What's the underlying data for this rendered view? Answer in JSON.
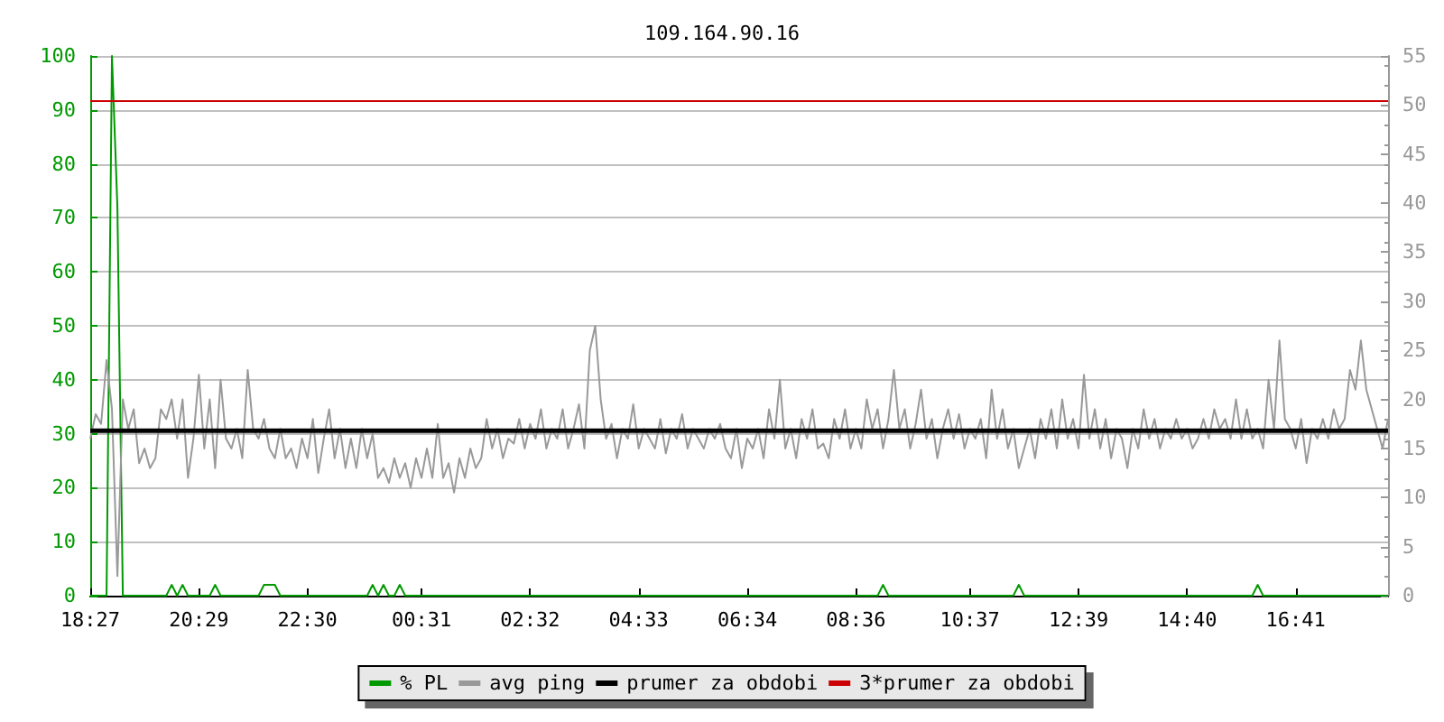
{
  "chart_data": {
    "type": "line",
    "title": "109.164.90.16",
    "legend": "bottom",
    "grid": "y",
    "marker": "none",
    "line_style": "solid",
    "categories": [
      "18:27",
      null,
      null,
      null,
      null,
      null,
      null,
      null,
      null,
      null,
      null,
      null,
      null,
      null,
      null,
      null,
      null,
      null,
      null,
      null,
      "20:29",
      null,
      null,
      null,
      null,
      null,
      null,
      null,
      null,
      null,
      null,
      null,
      null,
      null,
      null,
      null,
      null,
      null,
      null,
      null,
      "22:30",
      null,
      null,
      null,
      null,
      null,
      null,
      null,
      null,
      null,
      null,
      null,
      null,
      null,
      null,
      null,
      null,
      null,
      null,
      null,
      null,
      "00:31",
      null,
      null,
      null,
      null,
      null,
      null,
      null,
      null,
      null,
      null,
      null,
      null,
      null,
      null,
      null,
      null,
      null,
      null,
      null,
      "02:32",
      null,
      null,
      null,
      null,
      null,
      null,
      null,
      null,
      null,
      null,
      null,
      null,
      null,
      null,
      null,
      null,
      null,
      null,
      null,
      "04:33",
      null,
      null,
      null,
      null,
      null,
      null,
      null,
      null,
      null,
      null,
      null,
      null,
      null,
      null,
      null,
      null,
      null,
      null,
      null,
      "06:34",
      null,
      null,
      null,
      null,
      null,
      null,
      null,
      null,
      null,
      null,
      null,
      null,
      null,
      null,
      null,
      null,
      null,
      null,
      null,
      "08:36",
      null,
      null,
      null,
      null,
      null,
      null,
      null,
      null,
      null,
      null,
      null,
      null,
      null,
      null,
      null,
      null,
      null,
      null,
      null,
      null,
      "10:37",
      null,
      null,
      null,
      null,
      null,
      null,
      null,
      null,
      null,
      null,
      null,
      null,
      null,
      null,
      null,
      null,
      null,
      null,
      null,
      "12:39",
      null,
      null,
      null,
      null,
      null,
      null,
      null,
      null,
      null,
      null,
      null,
      null,
      null,
      null,
      null,
      null,
      null,
      null,
      null,
      "14:40",
      null,
      null,
      null,
      null,
      null,
      null,
      null,
      null,
      null,
      null,
      null,
      null,
      null,
      null,
      null,
      null,
      null,
      null,
      null,
      "16:41",
      null,
      null,
      null,
      null,
      null,
      null,
      null,
      null,
      null,
      null,
      null,
      null,
      null,
      null,
      null,
      null,
      null
    ],
    "ylim": [
      0,
      100
    ],
    "yticks": [
      0,
      10,
      20,
      30,
      40,
      50,
      60,
      70,
      80,
      90,
      100
    ],
    "y2lim": [
      0,
      55
    ],
    "y2ticks": [
      0,
      5,
      10,
      15,
      20,
      25,
      30,
      35,
      40,
      45,
      50,
      55
    ],
    "series": [
      {
        "name": "% PL",
        "color": "#009900",
        "axis": "y",
        "values": [
          0,
          0,
          0,
          0,
          100,
          72,
          0,
          0,
          0,
          0,
          0,
          0,
          0,
          0,
          0,
          2,
          0,
          2,
          0,
          0,
          0,
          0,
          0,
          2,
          0,
          0,
          0,
          0,
          0,
          0,
          0,
          0,
          2,
          2,
          2,
          0,
          0,
          0,
          0,
          0,
          0,
          0,
          0,
          0,
          0,
          0,
          0,
          0,
          0,
          0,
          0,
          0,
          2,
          0,
          2,
          0,
          0,
          2,
          0,
          0,
          0,
          0,
          0,
          0,
          0,
          0,
          0,
          0,
          0,
          0,
          0,
          0,
          0,
          0,
          0,
          0,
          0,
          0,
          0,
          0,
          0,
          0,
          0,
          0,
          0,
          0,
          0,
          0,
          0,
          0,
          0,
          0,
          0,
          0,
          0,
          0,
          0,
          0,
          0,
          0,
          0,
          0,
          0,
          0,
          0,
          0,
          0,
          0,
          0,
          0,
          0,
          0,
          0,
          0,
          0,
          0,
          0,
          0,
          0,
          0,
          0,
          0,
          0,
          0,
          0,
          0,
          0,
          0,
          0,
          0,
          0,
          0,
          0,
          0,
          0,
          0,
          0,
          0,
          0,
          0,
          0,
          0,
          0,
          0,
          0,
          0,
          2,
          0,
          0,
          0,
          0,
          0,
          0,
          0,
          0,
          0,
          0,
          0,
          0,
          0,
          0,
          0,
          0,
          0,
          0,
          0,
          0,
          0,
          0,
          0,
          0,
          2,
          0,
          0,
          0,
          0,
          0,
          0,
          0,
          0,
          0,
          0,
          0,
          0,
          0,
          0,
          0,
          0,
          0,
          0,
          0,
          0,
          0,
          0,
          0,
          0,
          0,
          0,
          0,
          0,
          0,
          0,
          0,
          0,
          0,
          0,
          0,
          0,
          0,
          0,
          0,
          0,
          0,
          0,
          0,
          2,
          0,
          0,
          0,
          0,
          0,
          0,
          0,
          0,
          0,
          0,
          0,
          0,
          0,
          0,
          0,
          0,
          0,
          0,
          0,
          0,
          0,
          0,
          0,
          0
        ]
      },
      {
        "name": "avg ping",
        "color": "#999999",
        "axis": "y2",
        "values": [
          16,
          18.5,
          17.5,
          24,
          19,
          2,
          20,
          17,
          19,
          13.5,
          15,
          13,
          14,
          19,
          18,
          20,
          16,
          20,
          12,
          16,
          22.5,
          15,
          20,
          13,
          22,
          16,
          15,
          17,
          14,
          23,
          17,
          16,
          18,
          15,
          14,
          17,
          14,
          15,
          13,
          16,
          14,
          18,
          12.5,
          16,
          19,
          14,
          17,
          13,
          16,
          13,
          17,
          14,
          16.5,
          12,
          13,
          11.5,
          14,
          12,
          13.5,
          11,
          14,
          12,
          15,
          12,
          17.5,
          12,
          13.5,
          10.5,
          14,
          12,
          15,
          13,
          14,
          18,
          15,
          17,
          14,
          16,
          15.5,
          18,
          15,
          17.5,
          16,
          19,
          15,
          17,
          16,
          19,
          15,
          17,
          19.5,
          15,
          25,
          27.5,
          20,
          16,
          17.5,
          14,
          17,
          16,
          19.5,
          15,
          17,
          16,
          15,
          18,
          14.5,
          17,
          16,
          18.5,
          15,
          17,
          16,
          15,
          17,
          16,
          17.5,
          15,
          14,
          17,
          13,
          16,
          15,
          17,
          14,
          19,
          16,
          22,
          15,
          17,
          14,
          18,
          16,
          19,
          15,
          15.5,
          14,
          18,
          16,
          19,
          15,
          17,
          15,
          20,
          17,
          19,
          15,
          18,
          23,
          17,
          19,
          15,
          17.5,
          21,
          16,
          18,
          14,
          17,
          19,
          16,
          18.5,
          15,
          17,
          16,
          18,
          14,
          21,
          16,
          19,
          15,
          17,
          13,
          15,
          17,
          14,
          18,
          16,
          19,
          15,
          20,
          16,
          18,
          15,
          22.5,
          16,
          19,
          15,
          18,
          14,
          17,
          16,
          13,
          17,
          15,
          19,
          16,
          18,
          15,
          17,
          16,
          18,
          16,
          17,
          15,
          16,
          18,
          16,
          19,
          17,
          18,
          16,
          20,
          16,
          19,
          16,
          17,
          15,
          22,
          17,
          26,
          18,
          17,
          15,
          18,
          13.5,
          17,
          16,
          18,
          16,
          19,
          17,
          18,
          23,
          21,
          26,
          21,
          19,
          17,
          15,
          18
        ]
      },
      {
        "name": "prumer za obdobi",
        "color": "#000000",
        "axis": "y2",
        "values": [
          16.8,
          16.8,
          16.8,
          16.8,
          16.8,
          16.8,
          16.8,
          16.8,
          16.8,
          16.8,
          16.8,
          16.8,
          16.8,
          16.8,
          16.8,
          16.8,
          16.8,
          16.8,
          16.8,
          16.8,
          16.8,
          16.8,
          16.8,
          16.8,
          16.8,
          16.8,
          16.8,
          16.8,
          16.8,
          16.8,
          16.8,
          16.8,
          16.8,
          16.8,
          16.8,
          16.8,
          16.8,
          16.8,
          16.8,
          16.8,
          16.8,
          16.8,
          16.8,
          16.8,
          16.8,
          16.8,
          16.8,
          16.8,
          16.8,
          16.8,
          16.8,
          16.8,
          16.8,
          16.8,
          16.8,
          16.8,
          16.8,
          16.8,
          16.8,
          16.8,
          16.8,
          16.8,
          16.8,
          16.8,
          16.8,
          16.8,
          16.8,
          16.8,
          16.8,
          16.8,
          16.8,
          16.8,
          16.8,
          16.8,
          16.8,
          16.8,
          16.8,
          16.8,
          16.8,
          16.8,
          16.8,
          16.8,
          16.8,
          16.8,
          16.8,
          16.8,
          16.8,
          16.8,
          16.8,
          16.8,
          16.8,
          16.8,
          16.8,
          16.8,
          16.8,
          16.8,
          16.8,
          16.8,
          16.8,
          16.8,
          16.8,
          16.8,
          16.8,
          16.8,
          16.8,
          16.8,
          16.8,
          16.8,
          16.8,
          16.8,
          16.8,
          16.8,
          16.8,
          16.8,
          16.8,
          16.8,
          16.8,
          16.8,
          16.8,
          16.8,
          16.8,
          16.8,
          16.8,
          16.8,
          16.8,
          16.8,
          16.8,
          16.8,
          16.8,
          16.8,
          16.8,
          16.8,
          16.8,
          16.8,
          16.8,
          16.8,
          16.8,
          16.8,
          16.8,
          16.8,
          16.8,
          16.8,
          16.8,
          16.8,
          16.8,
          16.8,
          16.8,
          16.8,
          16.8,
          16.8,
          16.8,
          16.8,
          16.8,
          16.8,
          16.8,
          16.8,
          16.8,
          16.8,
          16.8,
          16.8,
          16.8,
          16.8,
          16.8,
          16.8,
          16.8,
          16.8,
          16.8,
          16.8,
          16.8,
          16.8,
          16.8,
          16.8,
          16.8,
          16.8,
          16.8,
          16.8,
          16.8,
          16.8,
          16.8,
          16.8,
          16.8,
          16.8,
          16.8,
          16.8,
          16.8,
          16.8,
          16.8,
          16.8,
          16.8,
          16.8,
          16.8,
          16.8,
          16.8,
          16.8,
          16.8,
          16.8,
          16.8,
          16.8,
          16.8,
          16.8,
          16.8,
          16.8,
          16.8,
          16.8,
          16.8,
          16.8,
          16.8,
          16.8,
          16.8,
          16.8,
          16.8,
          16.8,
          16.8,
          16.8,
          16.8,
          16.8,
          16.8,
          16.8,
          16.8,
          16.8,
          16.8,
          16.8,
          16.8,
          16.8,
          16.8,
          16.8,
          16.8,
          16.8,
          16.8,
          16.8,
          16.8,
          16.8,
          16.8,
          16.8,
          16.8,
          16.8,
          16.8,
          16.8,
          16.8,
          16.8
        ]
      },
      {
        "name": "3*prumer za obdobi",
        "color": "#cc0000",
        "axis": "y2",
        "values": [
          50.4,
          50.4,
          50.4,
          50.4,
          50.4,
          50.4,
          50.4,
          50.4,
          50.4,
          50.4,
          50.4,
          50.4,
          50.4,
          50.4,
          50.4,
          50.4,
          50.4,
          50.4,
          50.4,
          50.4,
          50.4,
          50.4,
          50.4,
          50.4,
          50.4,
          50.4,
          50.4,
          50.4,
          50.4,
          50.4,
          50.4,
          50.4,
          50.4,
          50.4,
          50.4,
          50.4,
          50.4,
          50.4,
          50.4,
          50.4,
          50.4,
          50.4,
          50.4,
          50.4,
          50.4,
          50.4,
          50.4,
          50.4,
          50.4,
          50.4,
          50.4,
          50.4,
          50.4,
          50.4,
          50.4,
          50.4,
          50.4,
          50.4,
          50.4,
          50.4,
          50.4,
          50.4,
          50.4,
          50.4,
          50.4,
          50.4,
          50.4,
          50.4,
          50.4,
          50.4,
          50.4,
          50.4,
          50.4,
          50.4,
          50.4,
          50.4,
          50.4,
          50.4,
          50.4,
          50.4,
          50.4,
          50.4,
          50.4,
          50.4,
          50.4,
          50.4,
          50.4,
          50.4,
          50.4,
          50.4,
          50.4,
          50.4,
          50.4,
          50.4,
          50.4,
          50.4,
          50.4,
          50.4,
          50.4,
          50.4,
          50.4,
          50.4,
          50.4,
          50.4,
          50.4,
          50.4,
          50.4,
          50.4,
          50.4,
          50.4,
          50.4,
          50.4,
          50.4,
          50.4,
          50.4,
          50.4,
          50.4,
          50.4,
          50.4,
          50.4,
          50.4,
          50.4,
          50.4,
          50.4,
          50.4,
          50.4,
          50.4,
          50.4,
          50.4,
          50.4,
          50.4,
          50.4,
          50.4,
          50.4,
          50.4,
          50.4,
          50.4,
          50.4,
          50.4,
          50.4,
          50.4,
          50.4,
          50.4,
          50.4,
          50.4,
          50.4,
          50.4,
          50.4,
          50.4,
          50.4,
          50.4,
          50.4,
          50.4,
          50.4,
          50.4,
          50.4,
          50.4,
          50.4,
          50.4,
          50.4,
          50.4,
          50.4,
          50.4,
          50.4,
          50.4,
          50.4,
          50.4,
          50.4,
          50.4,
          50.4,
          50.4,
          50.4,
          50.4,
          50.4,
          50.4,
          50.4,
          50.4,
          50.4,
          50.4,
          50.4,
          50.4,
          50.4,
          50.4,
          50.4,
          50.4,
          50.4,
          50.4,
          50.4,
          50.4,
          50.4,
          50.4,
          50.4,
          50.4,
          50.4,
          50.4,
          50.4,
          50.4,
          50.4,
          50.4,
          50.4,
          50.4,
          50.4,
          50.4,
          50.4,
          50.4,
          50.4,
          50.4,
          50.4,
          50.4,
          50.4,
          50.4,
          50.4,
          50.4,
          50.4,
          50.4,
          50.4,
          50.4,
          50.4,
          50.4,
          50.4,
          50.4,
          50.4,
          50.4,
          50.4,
          50.4,
          50.4,
          50.4,
          50.4,
          50.4,
          50.4,
          50.4,
          50.4,
          50.4,
          50.4,
          50.4,
          50.4,
          50.4,
          50.4,
          50.4,
          50.4
        ]
      }
    ]
  }
}
